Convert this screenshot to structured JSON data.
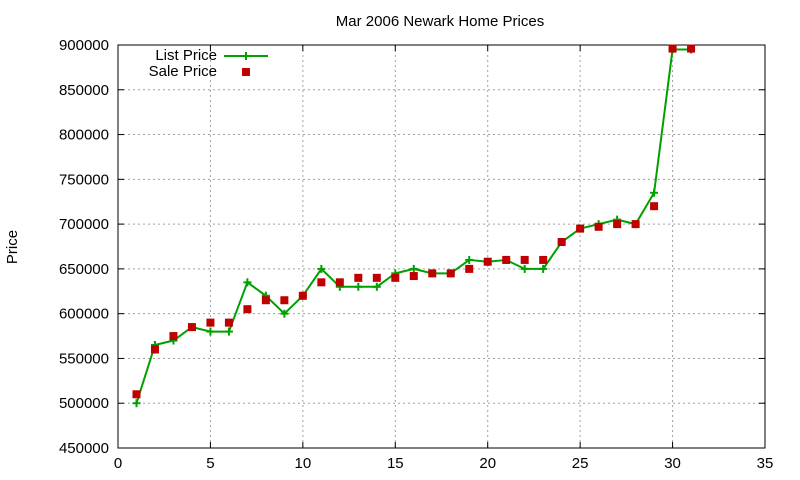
{
  "chart_data": {
    "type": "line",
    "title": "Mar 2006 Newark Home Prices",
    "xlabel": "",
    "ylabel": "Price",
    "xlim": [
      0,
      35
    ],
    "ylim": [
      450000,
      900000
    ],
    "xticks": [
      "0",
      "5",
      "10",
      "15",
      "20",
      "25",
      "30",
      "35"
    ],
    "yticks": [
      "450000",
      "500000",
      "550000",
      "600000",
      "650000",
      "700000",
      "750000",
      "800000",
      "850000",
      "900000"
    ],
    "grid": true,
    "legend_position": "top-left",
    "series": [
      {
        "name": "List Price",
        "style": "line-plus",
        "color": "#00a000",
        "x": [
          1,
          2,
          3,
          4,
          5,
          6,
          7,
          8,
          9,
          10,
          11,
          12,
          13,
          14,
          15,
          16,
          17,
          18,
          19,
          20,
          21,
          22,
          23,
          24,
          25,
          26,
          27,
          28,
          29,
          30,
          31
        ],
        "y": [
          500000,
          565000,
          570000,
          585000,
          580000,
          580000,
          635000,
          620000,
          600000,
          620000,
          650000,
          630000,
          630000,
          630000,
          645000,
          650000,
          645000,
          645000,
          660000,
          658000,
          660000,
          650000,
          650000,
          680000,
          695000,
          700000,
          705000,
          700000,
          735000,
          895000,
          895000
        ]
      },
      {
        "name": "Sale Price",
        "style": "points-square",
        "color": "#c00000",
        "x": [
          1,
          2,
          3,
          4,
          5,
          6,
          7,
          8,
          9,
          10,
          11,
          12,
          13,
          14,
          15,
          16,
          17,
          18,
          19,
          20,
          21,
          22,
          23,
          24,
          25,
          26,
          27,
          28,
          29,
          30,
          31
        ],
        "y": [
          510000,
          560000,
          575000,
          585000,
          590000,
          590000,
          605000,
          615000,
          615000,
          620000,
          635000,
          635000,
          640000,
          640000,
          640000,
          642000,
          645000,
          645000,
          650000,
          658000,
          660000,
          660000,
          660000,
          680000,
          695000,
          697000,
          700000,
          700000,
          720000,
          896000,
          896000
        ]
      }
    ]
  }
}
